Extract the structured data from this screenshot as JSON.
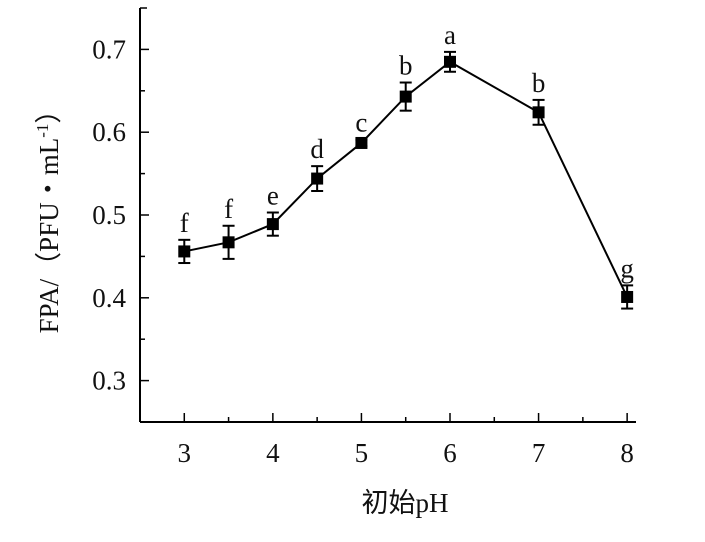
{
  "chart_data": {
    "type": "line",
    "title": "",
    "xlabel": "初始pH",
    "ylabel": "FPA/（PFU・mL⁻¹）",
    "ylabel_main": "FPA/（PFU・mL",
    "ylabel_sup": "-1",
    "ylabel_end": "）",
    "xlim": [
      2.5,
      8.1
    ],
    "ylim": [
      0.25,
      0.75
    ],
    "xticks": [
      3,
      4,
      5,
      6,
      7,
      8
    ],
    "xtick_labels": [
      "3",
      "4",
      "5",
      "6",
      "7",
      "8"
    ],
    "yticks": [
      0.3,
      0.4,
      0.5,
      0.6,
      0.7
    ],
    "ytick_labels": [
      "0.3",
      "0.4",
      "0.5",
      "0.6",
      "0.7"
    ],
    "grid": false,
    "series": [
      {
        "name": "FPA",
        "x": [
          3,
          3.5,
          4,
          4.5,
          5,
          5.5,
          6,
          7,
          8
        ],
        "y": [
          0.456,
          0.467,
          0.489,
          0.544,
          0.587,
          0.643,
          0.685,
          0.624,
          0.401
        ],
        "error": [
          0.014,
          0.02,
          0.014,
          0.015,
          0.004,
          0.017,
          0.012,
          0.015,
          0.014
        ],
        "significance": [
          "f",
          "f",
          "e",
          "d",
          "c",
          "b",
          "a",
          "b",
          "g"
        ],
        "color": "#000000"
      }
    ]
  }
}
